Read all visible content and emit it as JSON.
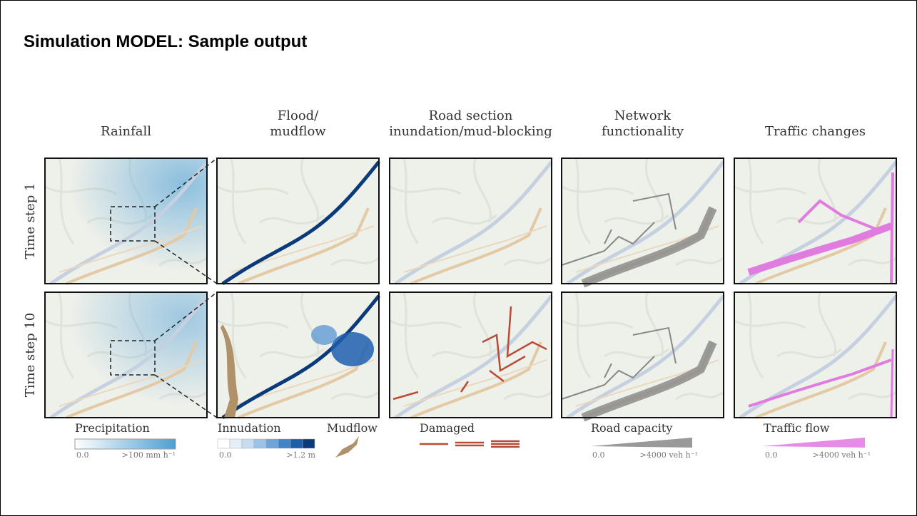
{
  "header": {
    "title": "Simulation MODEL: Sample output"
  },
  "figure": {
    "columns": [
      [
        "Rainfall"
      ],
      [
        "Flood/",
        "mudflow"
      ],
      [
        "Road section",
        "inundation/mud-blocking"
      ],
      [
        "Network",
        "functionality"
      ],
      [
        "Traffic changes"
      ]
    ],
    "rows": [
      "Time step 1",
      "Time step 10"
    ],
    "legends": [
      {
        "title": "Precipitation",
        "min": "0.0",
        "max": ">100 mm h⁻¹"
      },
      {
        "title": "Innudation",
        "min": "0.0",
        "max": ">1.2 m",
        "extra": "Mudflow"
      },
      {
        "title": "Damaged"
      },
      {
        "title": "Road capacity",
        "min": "0.0",
        "max": ">4000 veh h⁻¹"
      },
      {
        "title": "Traffic flow",
        "min": "0.0",
        "max": ">4000 veh h⁻¹"
      }
    ]
  }
}
